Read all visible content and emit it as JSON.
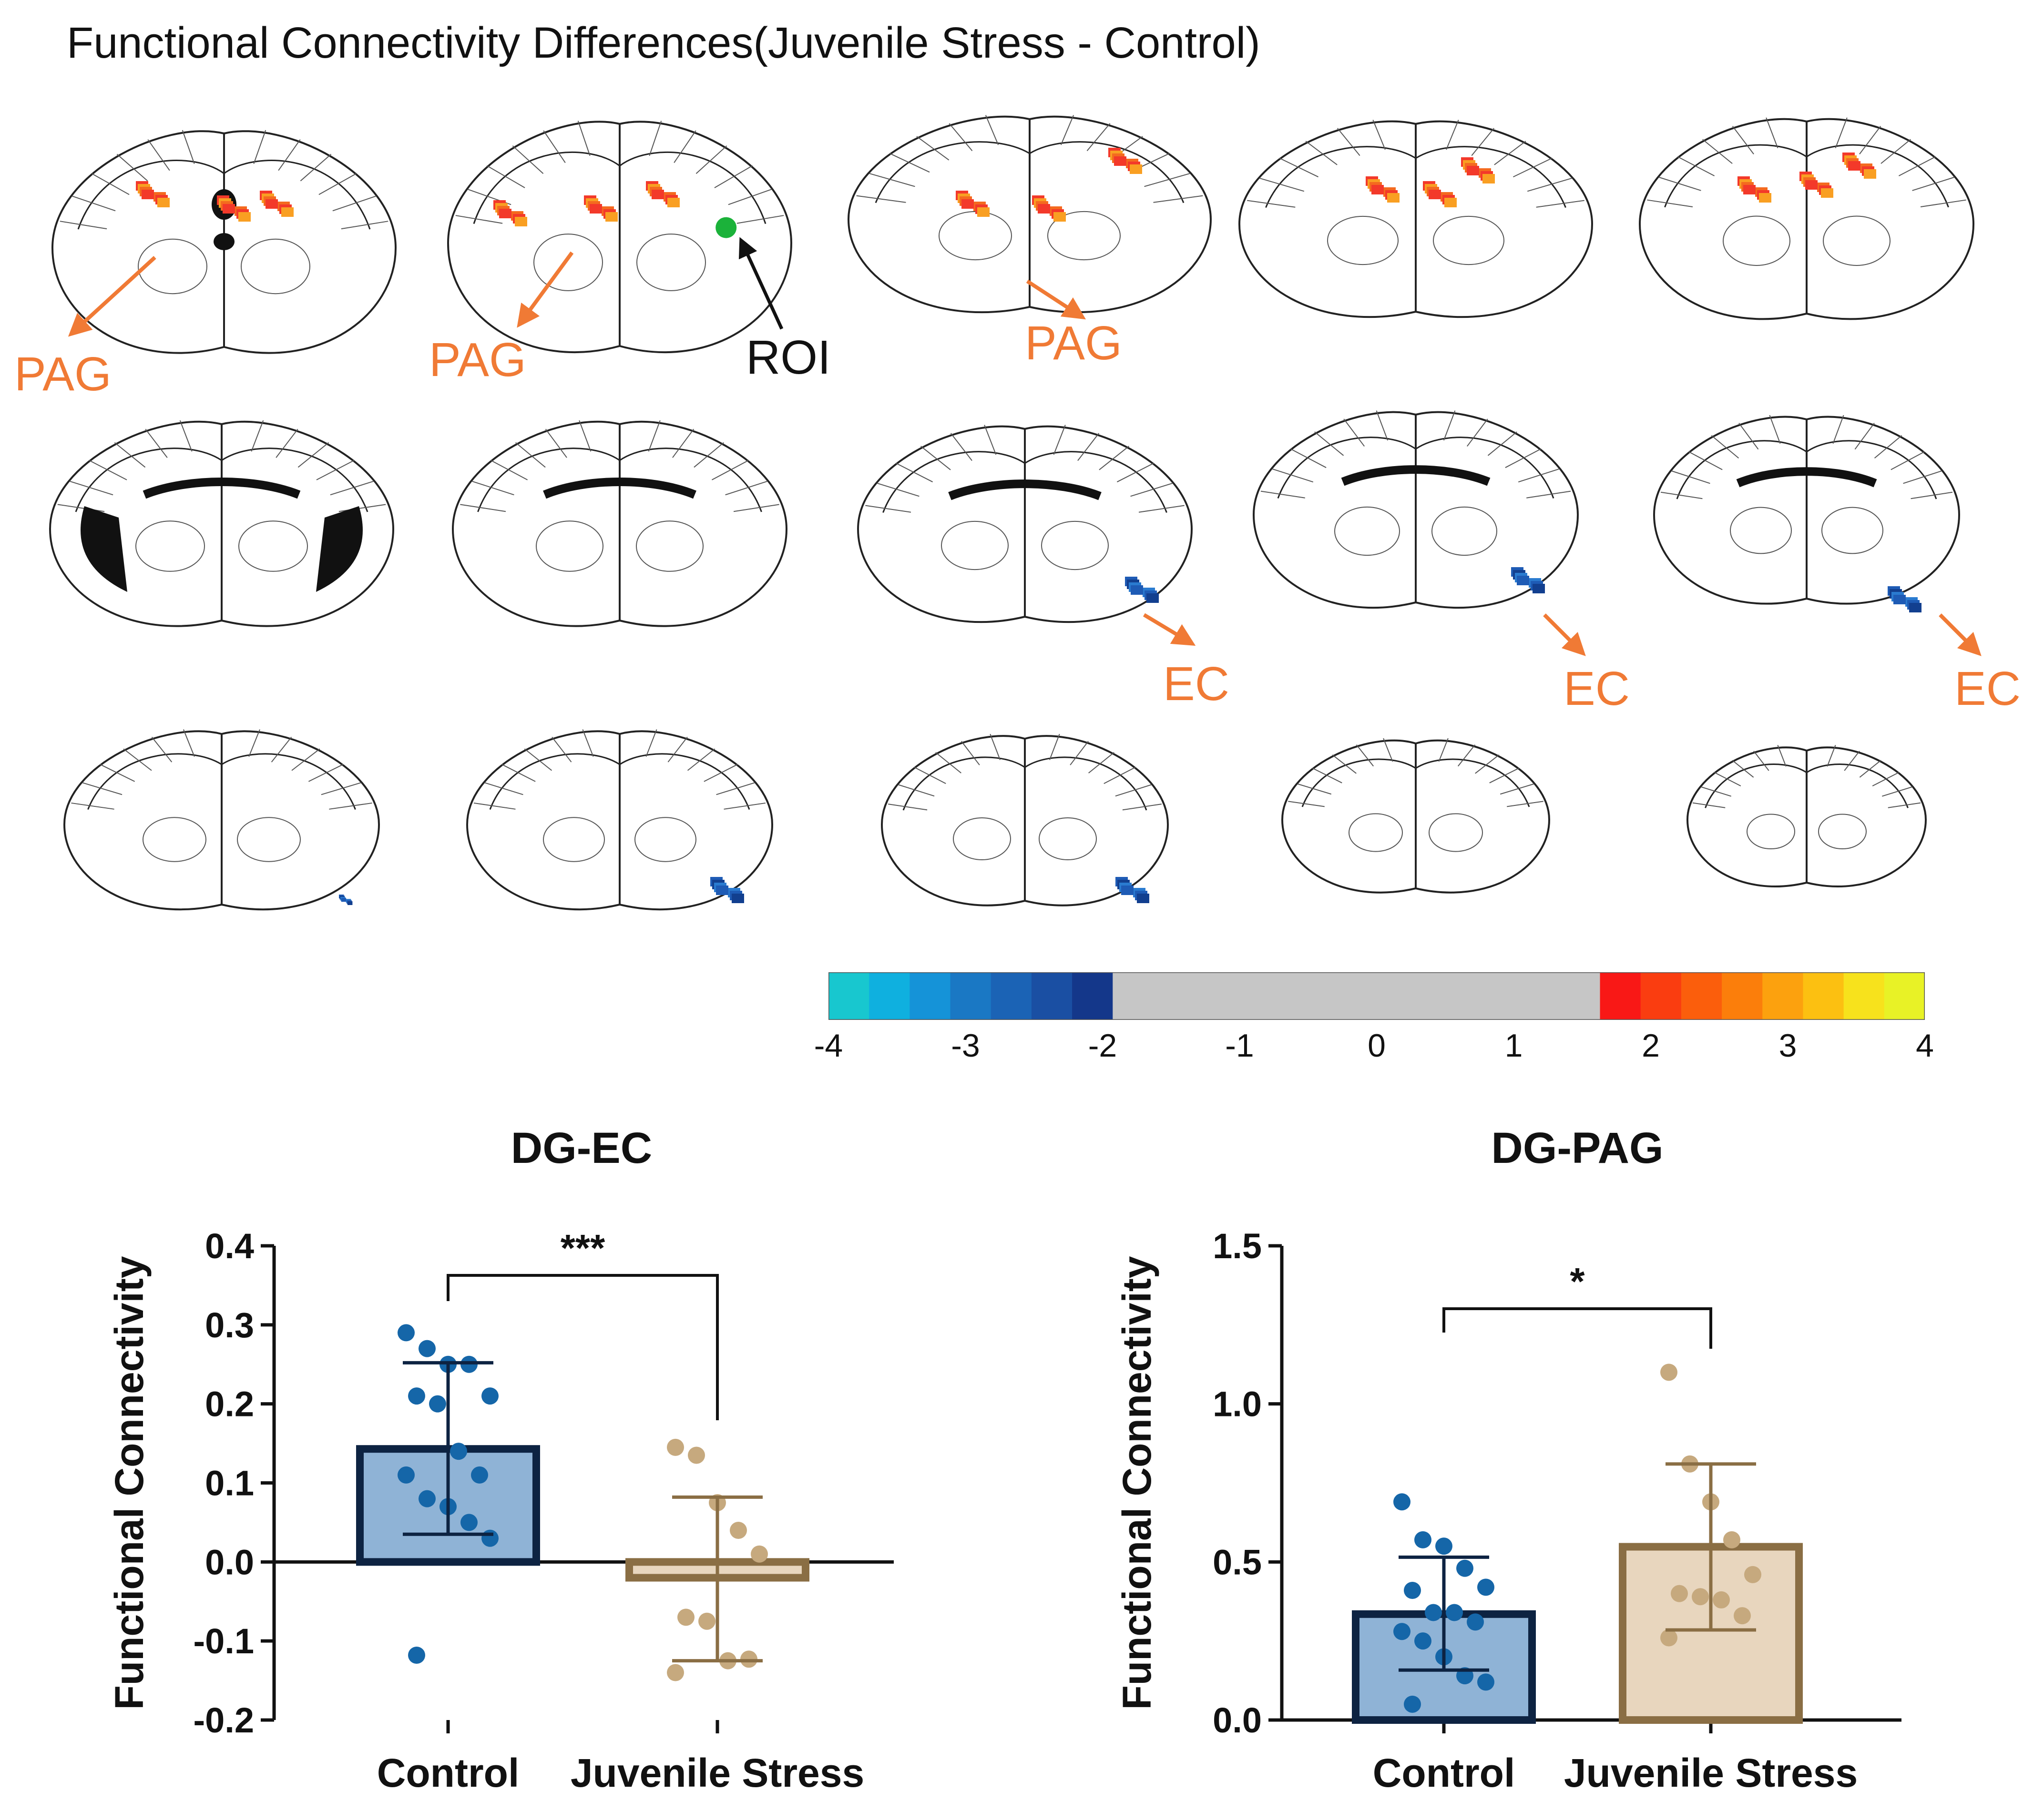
{
  "figure": {
    "title": "Functional Connectivity Differences(Juvenile Stress - Control)"
  },
  "annotations": {
    "pag_label": "PAG",
    "ec_label": "EC",
    "roi_label": "ROI"
  },
  "colors": {
    "orange_label": "#F07A35",
    "roi_dot": "#1BB23A",
    "control_fill": "#8FB3D6",
    "control_edge": "#0D2342",
    "control_dot": "#1566A8",
    "stress_fill": "#E8D6BE",
    "stress_edge": "#8A6E44",
    "stress_dot": "#C6A97E"
  },
  "colorbar": {
    "ticks": [
      "-4",
      "-3",
      "-2",
      "-1",
      "0",
      "1",
      "2",
      "3",
      "4"
    ],
    "range": [
      -4,
      4
    ]
  },
  "chart_data": [
    {
      "type": "bar",
      "title": "DG-EC",
      "ylabel": "Functional Connectivity",
      "xlabel": "",
      "categories": [
        "Control",
        "Juvenile Stress"
      ],
      "ylim": [
        -0.2,
        0.4
      ],
      "yticks": [
        "0.4",
        "0.3",
        "0.2",
        "0.1",
        "0.0",
        "-0.1",
        "-0.2"
      ],
      "ytick_values": [
        0.4,
        0.3,
        0.2,
        0.1,
        0.0,
        -0.1,
        -0.2
      ],
      "means": [
        0.143,
        -0.02
      ],
      "sd_upper": [
        0.252,
        0.082
      ],
      "sd_lower": [
        0.035,
        -0.125
      ],
      "points": [
        [
          0.29,
          0.27,
          0.25,
          0.25,
          0.21,
          0.21,
          0.2,
          0.14,
          0.11,
          0.11,
          0.08,
          0.07,
          0.05,
          0.03,
          -0.118
        ],
        [
          0.145,
          0.135,
          0.075,
          0.04,
          0.01,
          -0.07,
          -0.075,
          -0.125,
          -0.123,
          -0.14
        ]
      ],
      "significance": "***"
    },
    {
      "type": "bar",
      "title": "DG-PAG",
      "ylabel": "Functional Connectivity",
      "xlabel": "",
      "categories": [
        "Control",
        "Juvenile Stress"
      ],
      "ylim": [
        0.0,
        1.5
      ],
      "yticks": [
        "1.5",
        "1.0",
        "0.5",
        "0.0"
      ],
      "ytick_values": [
        1.5,
        1.0,
        0.5,
        0.0
      ],
      "means": [
        0.335,
        0.548
      ],
      "sd_upper": [
        0.515,
        0.81
      ],
      "sd_lower": [
        0.158,
        0.285
      ],
      "points": [
        [
          0.69,
          0.57,
          0.55,
          0.48,
          0.42,
          0.41,
          0.34,
          0.34,
          0.31,
          0.28,
          0.25,
          0.2,
          0.14,
          0.12,
          0.05
        ],
        [
          1.1,
          0.81,
          0.69,
          0.57,
          0.46,
          0.4,
          0.39,
          0.38,
          0.33,
          0.26
        ]
      ],
      "significance": "*"
    }
  ]
}
